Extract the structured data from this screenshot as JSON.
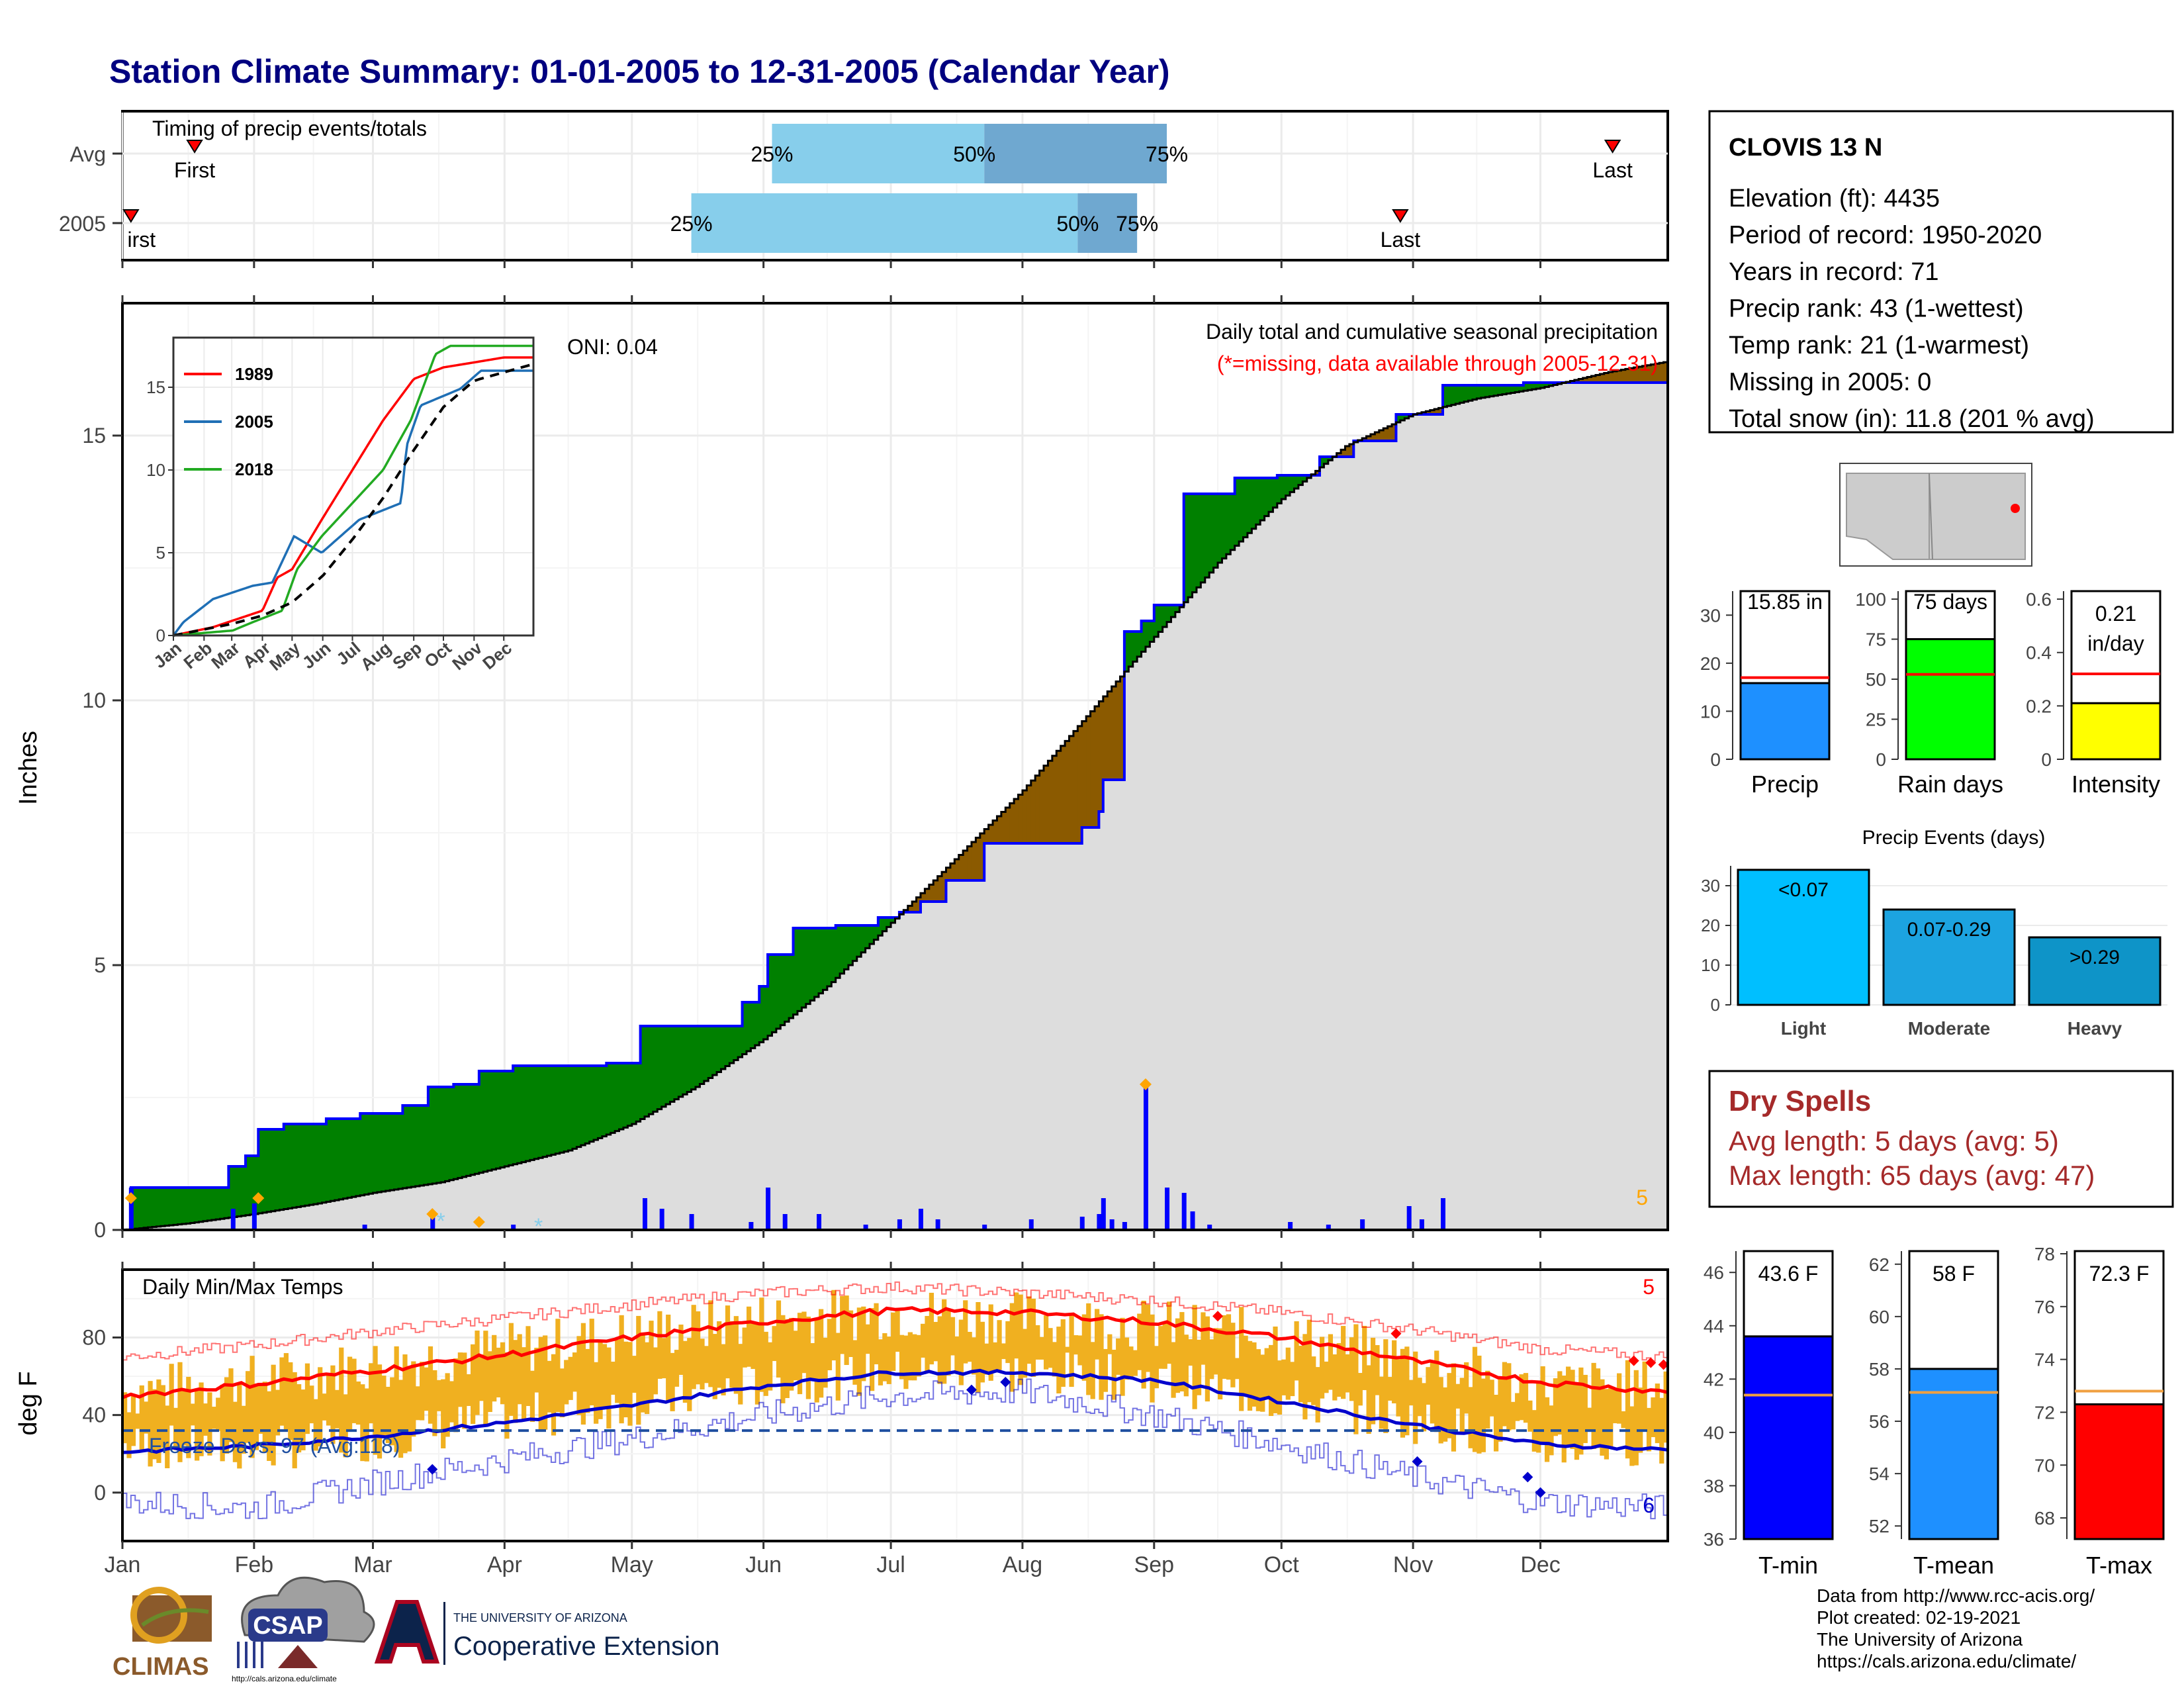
{
  "title": "Station Climate Summary: 01-01-2005 to 12-31-2005 (Calendar Year)",
  "colors": {
    "title": "#000080",
    "cumulative_fill": "#dddddd",
    "above_avg": "#008000",
    "below_avg": "#8b5a00",
    "daily_bar": "#0000ff",
    "quartile_light": "#87ceeb",
    "quartile_dark": "#6fa8d0",
    "temp_bar": "#f0b020",
    "tmax_line": "#ff0000",
    "tmin_line": "#0000cc",
    "dry_spells": "#a52a2a"
  },
  "timing_panel": {
    "title": "Timing of precip events/totals",
    "rows": [
      {
        "label": "Avg",
        "first_doy": 17,
        "last_doy": 351,
        "q25_doy": 153,
        "q50_doy": 203,
        "q75_doy": 246,
        "first_label": "First",
        "last_label": "Last",
        "q25_label": "25%",
        "q50_label": "50%",
        "q75_label": "75%"
      },
      {
        "label": "2005",
        "first_doy": 2,
        "last_doy": 301,
        "q25_doy": 134,
        "q50_doy": 225,
        "q75_doy": 239,
        "first_label": "irst",
        "last_label": "Last",
        "q25_label": "25%",
        "q50_label": "50%",
        "q75_label": "75%"
      }
    ]
  },
  "month_labels": [
    "Jan",
    "Feb",
    "Mar",
    "Apr",
    "May",
    "Jun",
    "Jul",
    "Aug",
    "Sep",
    "Oct",
    "Nov",
    "Dec"
  ],
  "month_start_doy": [
    0,
    31,
    59,
    90,
    120,
    151,
    181,
    212,
    243,
    273,
    304,
    334
  ],
  "precip_panel": {
    "ylabel": "Inches",
    "yticks": [
      0,
      5,
      10,
      15
    ],
    "ylim": [
      0,
      17.5
    ],
    "subtitle": "Daily total and cumulative seasonal precipitation",
    "missing_note": "(*=missing, data available through 2005-12-31)",
    "oni": "ONI: 0.04",
    "corner_count": "5"
  },
  "chart_data": [
    {
      "type": "area",
      "name": "cumulative_precip",
      "x_unit": "day of year",
      "observed_2005": [
        [
          0,
          0
        ],
        [
          2,
          0.8
        ],
        [
          10,
          0.8
        ],
        [
          20,
          0.8
        ],
        [
          25,
          1.2
        ],
        [
          29,
          1.4
        ],
        [
          32,
          1.9
        ],
        [
          38,
          2.0
        ],
        [
          48,
          2.1
        ],
        [
          56,
          2.2
        ],
        [
          66,
          2.35
        ],
        [
          72,
          2.7
        ],
        [
          78,
          2.75
        ],
        [
          84,
          3.0
        ],
        [
          92,
          3.1
        ],
        [
          106,
          3.1
        ],
        [
          114,
          3.15
        ],
        [
          122,
          3.85
        ],
        [
          132,
          3.85
        ],
        [
          146,
          4.3
        ],
        [
          150,
          4.6
        ],
        [
          152,
          5.2
        ],
        [
          158,
          5.7
        ],
        [
          168,
          5.75
        ],
        [
          178,
          5.9
        ],
        [
          183,
          6.0
        ],
        [
          188,
          6.2
        ],
        [
          194,
          6.6
        ],
        [
          203,
          7.3
        ],
        [
          214,
          7.3
        ],
        [
          222,
          7.3
        ],
        [
          226,
          7.6
        ],
        [
          230,
          7.9
        ],
        [
          231,
          8.5
        ],
        [
          234,
          8.5
        ],
        [
          236,
          11.3
        ],
        [
          240,
          11.5
        ],
        [
          243,
          11.8
        ],
        [
          249,
          11.8
        ],
        [
          250,
          13.9
        ],
        [
          256,
          13.9
        ],
        [
          262,
          14.2
        ],
        [
          272,
          14.25
        ],
        [
          282,
          14.6
        ],
        [
          290,
          14.9
        ],
        [
          300,
          15.4
        ],
        [
          306,
          15.4
        ],
        [
          311,
          15.95
        ],
        [
          318,
          15.95
        ],
        [
          330,
          16.0
        ],
        [
          360,
          16.0
        ]
      ],
      "average": [
        [
          0,
          0
        ],
        [
          15,
          0.12
        ],
        [
          31,
          0.3
        ],
        [
          46,
          0.5
        ],
        [
          59,
          0.7
        ],
        [
          75,
          0.9
        ],
        [
          90,
          1.2
        ],
        [
          105,
          1.5
        ],
        [
          120,
          2.0
        ],
        [
          135,
          2.7
        ],
        [
          151,
          3.6
        ],
        [
          166,
          4.6
        ],
        [
          181,
          5.8
        ],
        [
          196,
          7.0
        ],
        [
          212,
          8.3
        ],
        [
          227,
          9.7
        ],
        [
          243,
          11.2
        ],
        [
          258,
          12.6
        ],
        [
          273,
          13.8
        ],
        [
          288,
          14.8
        ],
        [
          304,
          15.4
        ],
        [
          319,
          15.7
        ],
        [
          334,
          15.9
        ],
        [
          350,
          16.2
        ],
        [
          364,
          16.4
        ]
      ],
      "daily_bars": [
        [
          2,
          0.8
        ],
        [
          26,
          0.4
        ],
        [
          31,
          0.5
        ],
        [
          57,
          0.1
        ],
        [
          73,
          0.3
        ],
        [
          92,
          0.1
        ],
        [
          123,
          0.6
        ],
        [
          127,
          0.4
        ],
        [
          134,
          0.3
        ],
        [
          148,
          0.15
        ],
        [
          152,
          0.8
        ],
        [
          156,
          0.3
        ],
        [
          164,
          0.3
        ],
        [
          175,
          0.1
        ],
        [
          183,
          0.2
        ],
        [
          188,
          0.4
        ],
        [
          192,
          0.2
        ],
        [
          203,
          0.1
        ],
        [
          214,
          0.2
        ],
        [
          226,
          0.25
        ],
        [
          230,
          0.3
        ],
        [
          231,
          0.6
        ],
        [
          233,
          0.2
        ],
        [
          236,
          0.15
        ],
        [
          241,
          2.8
        ],
        [
          246,
          0.8
        ],
        [
          250,
          0.7
        ],
        [
          252,
          0.35
        ],
        [
          256,
          0.1
        ],
        [
          275,
          0.15
        ],
        [
          284,
          0.1
        ],
        [
          292,
          0.2
        ],
        [
          303,
          0.45
        ],
        [
          306,
          0.2
        ],
        [
          311,
          0.6
        ]
      ],
      "snow_markers": [
        [
          2,
          0.6
        ],
        [
          32,
          0.6
        ],
        [
          73,
          0.3
        ],
        [
          84,
          0.15
        ],
        [
          241,
          2.75
        ]
      ]
    },
    {
      "type": "line",
      "name": "inset_cumulative",
      "legend": [
        "1989",
        "2005",
        "2018"
      ],
      "ylim": [
        0,
        18
      ],
      "yticks": [
        0,
        5,
        10,
        15
      ],
      "series": [
        {
          "name": "1989",
          "color": "#ff0000",
          "points": [
            [
              0,
              0
            ],
            [
              40,
              0.5
            ],
            [
              90,
              1.5
            ],
            [
              105,
              3.5
            ],
            [
              120,
              4
            ],
            [
              150,
              7
            ],
            [
              181,
              10
            ],
            [
              212,
              13
            ],
            [
              243,
              15.5
            ],
            [
              273,
              16.2
            ],
            [
              304,
              16.5
            ],
            [
              334,
              16.8
            ],
            [
              364,
              16.8
            ]
          ]
        },
        {
          "name": "2005",
          "color": "#1f6fb5",
          "points": [
            [
              0,
              0
            ],
            [
              10,
              0.8
            ],
            [
              40,
              2.2
            ],
            [
              80,
              3
            ],
            [
              100,
              3.2
            ],
            [
              122,
              6
            ],
            [
              150,
              5
            ],
            [
              188,
              7
            ],
            [
              230,
              8
            ],
            [
              236,
              11.5
            ],
            [
              250,
              13.9
            ],
            [
              290,
              14.9
            ],
            [
              311,
              16
            ],
            [
              364,
              16
            ]
          ]
        },
        {
          "name": "2018",
          "color": "#22aa22",
          "points": [
            [
              0,
              0
            ],
            [
              60,
              0.3
            ],
            [
              80,
              0.8
            ],
            [
              110,
              1.5
            ],
            [
              125,
              4
            ],
            [
              150,
              6
            ],
            [
              181,
              8
            ],
            [
              212,
              10
            ],
            [
              240,
              13
            ],
            [
              265,
              17
            ],
            [
              280,
              17.5
            ],
            [
              364,
              17.5
            ]
          ]
        },
        {
          "name": "avg",
          "color": "#000000",
          "dashed": true,
          "points": [
            [
              0,
              0
            ],
            [
              59,
              0.7
            ],
            [
              90,
              1.2
            ],
            [
              120,
              2.0
            ],
            [
              151,
              3.6
            ],
            [
              181,
              5.8
            ],
            [
              212,
              8.3
            ],
            [
              243,
              11.2
            ],
            [
              273,
              13.8
            ],
            [
              304,
              15.4
            ],
            [
              334,
              15.9
            ],
            [
              364,
              16.4
            ]
          ]
        }
      ]
    },
    {
      "type": "line",
      "name": "daily_temps",
      "title": "Daily Min/Max Temps",
      "ylabel": "deg F",
      "yticks": [
        0,
        40,
        80
      ],
      "ylim": [
        -25,
        115
      ],
      "freeze_line": 32,
      "freeze_label": "Freeze Days: 97 (Avg:118)",
      "corner_top": "5",
      "corner_bottom": "6",
      "avg_max": [
        [
          0,
          50
        ],
        [
          31,
          56
        ],
        [
          59,
          63
        ],
        [
          90,
          71
        ],
        [
          120,
          80
        ],
        [
          151,
          88
        ],
        [
          181,
          94
        ],
        [
          212,
          93
        ],
        [
          243,
          88
        ],
        [
          273,
          80
        ],
        [
          304,
          68
        ],
        [
          334,
          57
        ],
        [
          364,
          52
        ]
      ],
      "avg_min": [
        [
          0,
          21
        ],
        [
          31,
          24
        ],
        [
          59,
          29
        ],
        [
          90,
          36
        ],
        [
          120,
          45
        ],
        [
          151,
          55
        ],
        [
          181,
          62
        ],
        [
          212,
          62
        ],
        [
          243,
          58
        ],
        [
          273,
          47
        ],
        [
          304,
          35
        ],
        [
          334,
          25
        ],
        [
          364,
          22
        ]
      ],
      "record_max": [
        [
          0,
          70
        ],
        [
          31,
          76
        ],
        [
          59,
          83
        ],
        [
          90,
          90
        ],
        [
          120,
          97
        ],
        [
          151,
          103
        ],
        [
          181,
          106
        ],
        [
          212,
          103
        ],
        [
          243,
          99
        ],
        [
          273,
          93
        ],
        [
          304,
          84
        ],
        [
          334,
          74
        ],
        [
          364,
          70
        ]
      ],
      "record_min": [
        [
          0,
          -5
        ],
        [
          31,
          -8
        ],
        [
          59,
          5
        ],
        [
          90,
          17
        ],
        [
          120,
          28
        ],
        [
          151,
          40
        ],
        [
          181,
          50
        ],
        [
          212,
          52
        ],
        [
          243,
          40
        ],
        [
          273,
          25
        ],
        [
          304,
          8
        ],
        [
          334,
          -5
        ],
        [
          364,
          -8
        ]
      ],
      "obs_max_mean": [
        [
          0,
          52
        ],
        [
          31,
          58
        ],
        [
          59,
          66
        ],
        [
          90,
          74
        ],
        [
          120,
          81
        ],
        [
          151,
          90
        ],
        [
          181,
          93
        ],
        [
          212,
          90
        ],
        [
          243,
          86
        ],
        [
          273,
          80
        ],
        [
          304,
          68
        ],
        [
          334,
          55
        ],
        [
          364,
          55
        ]
      ],
      "obs_min_mean": [
        [
          0,
          24
        ],
        [
          31,
          22
        ],
        [
          59,
          28
        ],
        [
          90,
          38
        ],
        [
          120,
          46
        ],
        [
          151,
          56
        ],
        [
          181,
          62
        ],
        [
          212,
          62
        ],
        [
          243,
          58
        ],
        [
          273,
          48
        ],
        [
          304,
          37
        ],
        [
          334,
          24
        ],
        [
          364,
          26
        ]
      ]
    },
    {
      "type": "bar",
      "name": "annual_totals",
      "bars": [
        {
          "label": "Precip",
          "value": 15.85,
          "avg": 17,
          "ylim": [
            0,
            35
          ],
          "yticks": [
            0,
            10,
            20,
            30
          ],
          "color": "#1e90ff",
          "value_label": "15.85 in"
        },
        {
          "label": "Rain days",
          "value": 75,
          "avg": 53,
          "ylim": [
            0,
            105
          ],
          "yticks": [
            0,
            25,
            50,
            75,
            100
          ],
          "color": "#00ff00",
          "value_label": "75 days"
        },
        {
          "label": "Intensity",
          "value": 0.21,
          "avg": 0.32,
          "ylim": [
            0,
            0.63
          ],
          "yticks": [
            0.0,
            0.2,
            0.4,
            0.6
          ],
          "color": "#ffff00",
          "value_label": "0.21",
          "value_label_2": "in/day"
        }
      ]
    },
    {
      "type": "bar",
      "name": "precip_events",
      "title": "Precip Events (days)",
      "categories": [
        "Light",
        "Moderate",
        "Heavy"
      ],
      "bar_labels": [
        "<0.07",
        "0.07-0.29",
        ">0.29"
      ],
      "values": [
        34,
        24,
        17
      ],
      "ylim": [
        0,
        35
      ],
      "yticks": [
        0,
        10,
        20,
        30
      ],
      "colors": [
        "#00bfff",
        "#1ca3e0",
        "#0e94c8"
      ]
    },
    {
      "type": "bar",
      "name": "temp_summary",
      "bars": [
        {
          "label": "T-min",
          "value": 43.6,
          "avg": 41.4,
          "ylim": [
            36,
            46.8
          ],
          "yticks": [
            36,
            38,
            40,
            42,
            44,
            46
          ],
          "color": "#0000ff",
          "value_label": "43.6 F"
        },
        {
          "label": "T-mean",
          "value": 58,
          "avg": 57.1,
          "ylim": [
            51.5,
            62.5
          ],
          "yticks": [
            52,
            54,
            56,
            58,
            60,
            62
          ],
          "color": "#1e90ff",
          "value_label": "58 F"
        },
        {
          "label": "T-max",
          "value": 72.3,
          "avg": 72.8,
          "ylim": [
            67.2,
            78.1
          ],
          "yticks": [
            68,
            70,
            72,
            74,
            76,
            78
          ],
          "color": "#ff0000",
          "value_label": "72.3 F"
        }
      ]
    }
  ],
  "station_box": {
    "name": "CLOVIS 13 N",
    "lines": [
      "Elevation (ft): 4435",
      "Period of record: 1950-2020",
      "Years in record: 71",
      "Precip rank: 43 (1-wettest)",
      "Temp rank: 21 (1-warmest)",
      "Missing in 2005: 0",
      "Total snow (in): 11.8 (201 % avg)"
    ]
  },
  "dry_spells": {
    "title": "Dry Spells",
    "avg_line": "Avg length: 5 days (avg: 5)",
    "max_line": "Max length: 65 days (avg: 47)"
  },
  "credits": [
    "Data from http://www.rcc-acis.org/",
    "Plot created: 02-19-2021",
    "The University of Arizona",
    "https://cals.arizona.edu/climate/"
  ],
  "logos": {
    "climas": "CLIMAS",
    "csap": "CSAP",
    "csap_url": "http://cals.arizona.edu/climate",
    "ua_small": "THE UNIVERSITY OF ARIZONA",
    "ua_big": "Cooperative Extension"
  }
}
